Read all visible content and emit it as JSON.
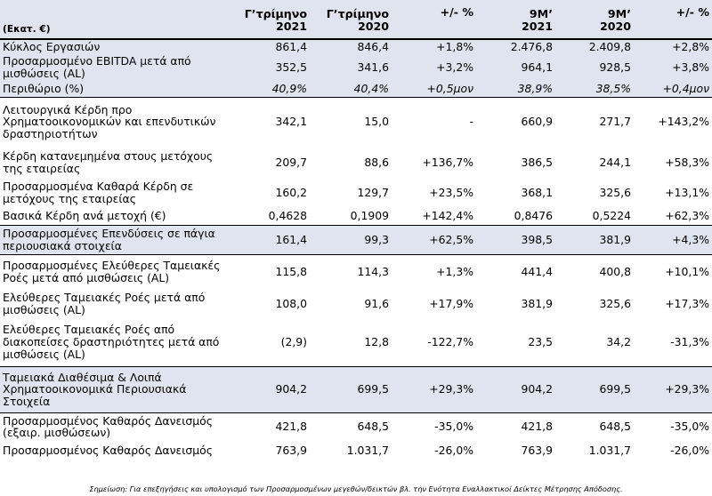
{
  "header": {
    "unit": "(Εκατ. €)",
    "columns": [
      {
        "line1": "Γ’τρίμηνο",
        "line2": "2021"
      },
      {
        "line1": "Γ’τρίμηνο",
        "line2": "2020"
      },
      {
        "line1": "+/- %",
        "line2": ""
      },
      {
        "line1": "9Μ’",
        "line2": "2021"
      },
      {
        "line1": "9Μ’",
        "line2": "2020"
      },
      {
        "line1": "+/- %",
        "line2": ""
      }
    ]
  },
  "rows": [
    {
      "label": "Κύκλος Εργασιών",
      "values": [
        "861,4",
        "846,4",
        "+1,8%",
        "2.476,8",
        "2.409,8",
        "+2,8%"
      ]
    },
    {
      "label": "Προσαρμοσμένο EBITDA μετά από μισθώσεις (AL)",
      "values": [
        "352,5",
        "341,6",
        "+3,2%",
        "964,1",
        "928,5",
        "+3,8%"
      ]
    },
    {
      "label": "Περιθώριο (%)",
      "values": [
        "40,9%",
        "40,4%",
        "+0,5μον",
        "38,9%",
        "38,5%",
        "+0,4μον"
      ]
    },
    {
      "label": "Λειτουργικά Κέρδη προ Χρηματοοικονομικών και επενδυτικών δραστηριοτήτων",
      "values": [
        "342,1",
        "15,0",
        "-",
        "660,9",
        "271,7",
        "+143,2%"
      ]
    },
    {
      "label": "Κέρδη κατανεμημένα στους μετόχους της εταιρείας",
      "values": [
        "209,7",
        "88,6",
        "+136,7%",
        "386,5",
        "244,1",
        "+58,3%"
      ]
    },
    {
      "label": "Προσαρμοσμένα Καθαρά Κέρδη σε μετόχους της εταιρείας",
      "values": [
        "160,2",
        "129,7",
        "+23,5%",
        "368,1",
        "325,6",
        "+13,1%"
      ]
    },
    {
      "label": "Βασικά Κέρδη ανά μετοχή (€)",
      "values": [
        "0,4628",
        "0,1909",
        "+142,4%",
        "0,8476",
        "0,5224",
        "+62,3%"
      ]
    },
    {
      "label": "Προσαρμοσμένες Επενδύσεις σε πάγια περιουσιακά στοιχεία",
      "values": [
        "161,4",
        "99,3",
        "+62,5%",
        "398,5",
        "381,9",
        "+4,3%"
      ]
    },
    {
      "label": "Προσαρμοσμένες Ελεύθερες Ταμειακές Ροές μετά από μισθώσεις (AL)",
      "values": [
        "115,8",
        "114,3",
        "+1,3%",
        "441,4",
        "400,8",
        "+10,1%"
      ]
    },
    {
      "label": "Ελεύθερες Ταμειακές Ροές μετά από μισθώσεις (AL)",
      "values": [
        "108,0",
        "91,6",
        "+17,9%",
        "381,9",
        "325,6",
        "+17,3%"
      ]
    },
    {
      "label": "Ελεύθερες Ταμειακές Ροές από διακοπείσες δραστηριότητες μετά από μισθώσεις (AL)",
      "values": [
        "(2,9)",
        "12,8",
        "-122,7%",
        "23,5",
        "34,2",
        "-31,3%"
      ]
    },
    {
      "label": "Ταμειακά Διαθέσιμα & Λοιπά Χρηματοοικονομικά Περιουσιακά Στοιχεία",
      "values": [
        "904,2",
        "699,5",
        "+29,3%",
        "904,2",
        "699,5",
        "+29,3%"
      ]
    },
    {
      "label": "Προσαρμοσμένος Καθαρός Δανεισμός (εξαιρ. μισθώσεων)",
      "values": [
        "421,8",
        "648,5",
        "-35,0%",
        "421,8",
        "648,5",
        "-35,0%"
      ]
    },
    {
      "label": "Προσαρμοσμένος Καθαρός Δανεισμός",
      "values": [
        "763,9",
        "1.031,7",
        "-26,0%",
        "763,9",
        "1.031,7",
        "-26,0%"
      ]
    }
  ],
  "footnote": "Σημείωση: Για επεξηγήσεις και υπολογισμό των Προσαρμοσμένων μεγεθών/δεικτών βλ. την Ενότητα Εναλλακτικοί Δείκτες Μέτρησης Απόδοσης."
}
